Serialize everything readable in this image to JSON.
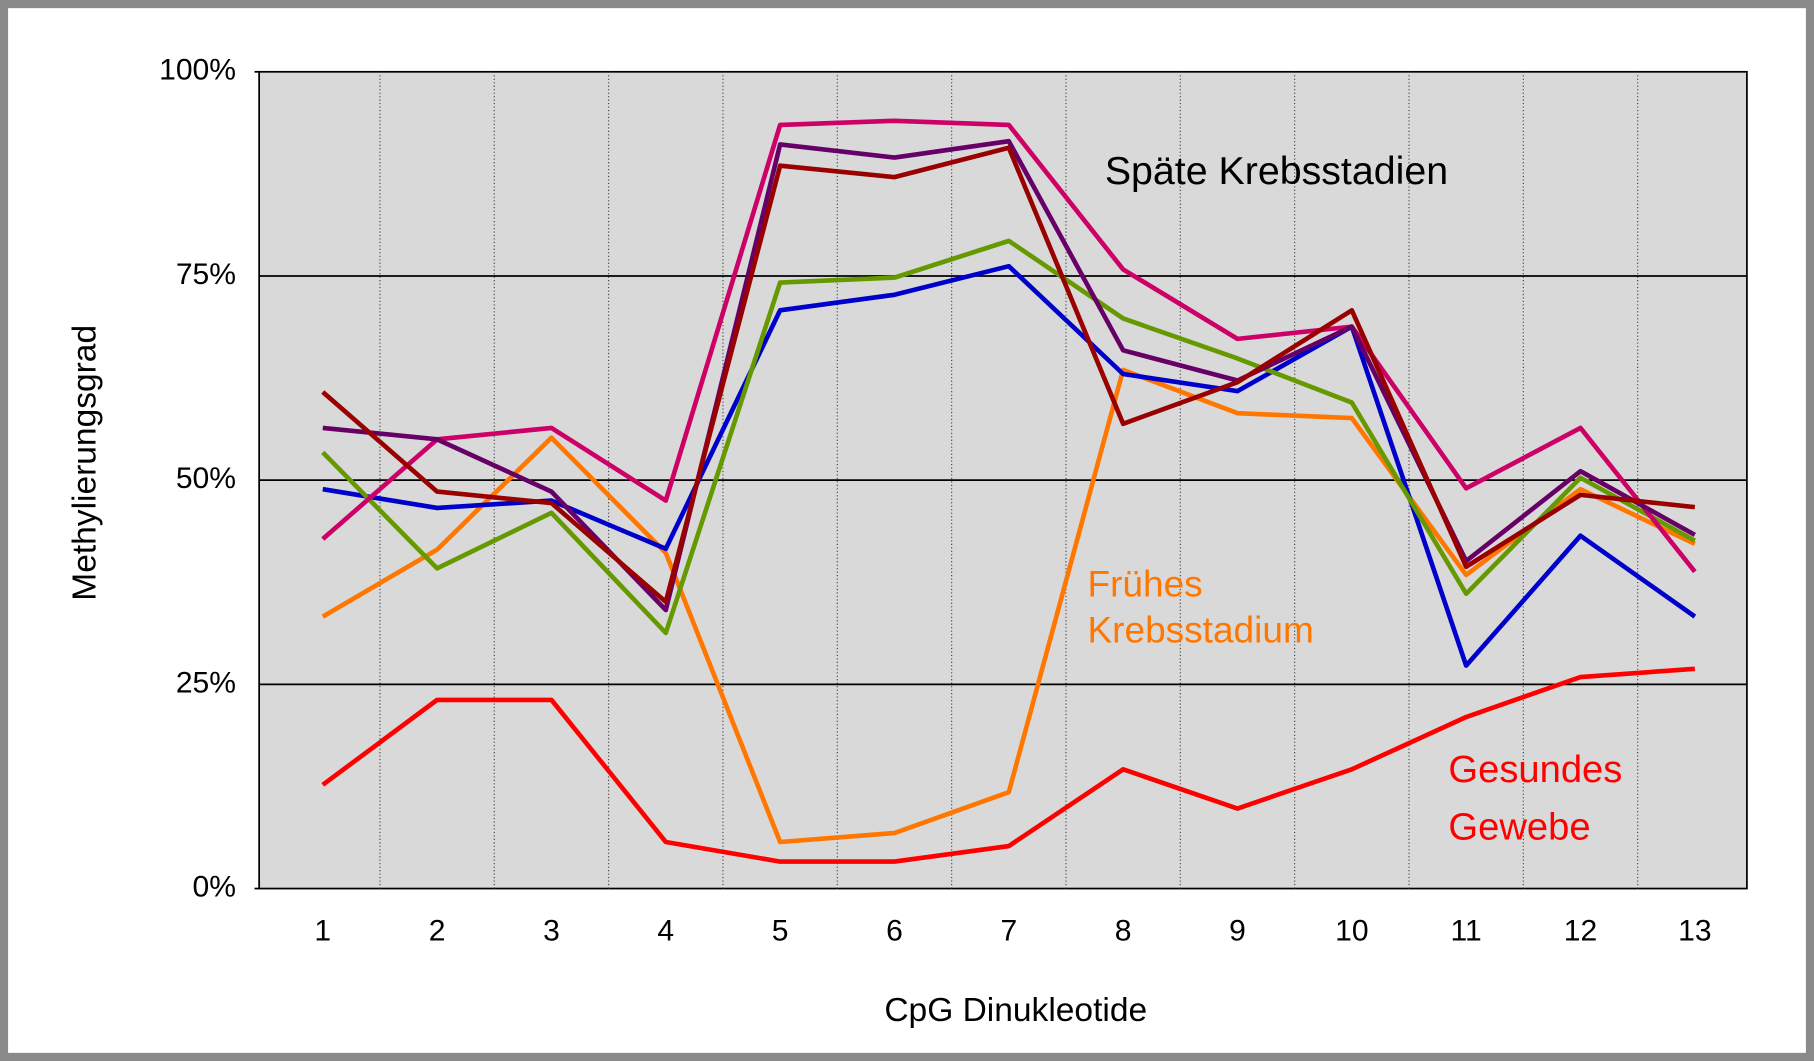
{
  "chart_data": {
    "type": "line",
    "x_label": "CpG Dinukleotide",
    "y_label": "Methylierungsgrad",
    "categories": [
      "1",
      "2",
      "3",
      "4",
      "5",
      "6",
      "7",
      "8",
      "9",
      "10",
      "11",
      "12",
      "13"
    ],
    "ylim": [
      0,
      100
    ],
    "yticks": [
      {
        "value": 0,
        "label": "0%"
      },
      {
        "value": 25,
        "label": "25%"
      },
      {
        "value": 50,
        "label": "50%"
      },
      {
        "value": 75,
        "label": "75%"
      },
      {
        "value": 100,
        "label": "100%"
      }
    ],
    "grid": true,
    "series": [
      {
        "color": "#ff0000",
        "values": [
          12.7,
          23.1,
          23.1,
          5.7,
          3.3,
          3.3,
          5.2,
          14.6,
          9.8,
          14.6,
          21,
          25.9,
          26.9
        ]
      },
      {
        "color": "#ff7700",
        "values": [
          33.3,
          41.5,
          55.2,
          41.1,
          5.7,
          6.8,
          11.8,
          63.5,
          58.2,
          57.6,
          38.4,
          48.9,
          42.2
        ]
      },
      {
        "color": "#0000cc",
        "values": [
          48.9,
          46.6,
          47.5,
          41.6,
          70.8,
          72.7,
          76.2,
          63,
          60.9,
          68.8,
          27.3,
          43.2,
          33.3
        ]
      },
      {
        "color": "#669900",
        "values": [
          53.4,
          39.2,
          46,
          31.3,
          74.2,
          74.8,
          79.3,
          69.8,
          64.9,
          59.5,
          36.1,
          50.3,
          42.6
        ]
      },
      {
        "color": "#cc0066",
        "values": [
          42.8,
          55,
          56.4,
          47.5,
          93.5,
          94,
          93.5,
          75.8,
          67.3,
          68.8,
          49,
          56.4,
          38.8
        ]
      },
      {
        "color": "#660066",
        "values": [
          56.4,
          55,
          48.6,
          34.1,
          91.1,
          89.5,
          91.5,
          65.9,
          62.2,
          68.8,
          40.1,
          51.1,
          43.3
        ]
      },
      {
        "color": "#990000",
        "values": [
          60.8,
          48.6,
          47.2,
          35.1,
          88.5,
          87.1,
          90.7,
          56.9,
          62,
          70.8,
          39.4,
          48.2,
          46.7
        ]
      }
    ],
    "annotations": [
      {
        "lines": [
          "Späte Krebsstadien"
        ],
        "color": "#000000"
      },
      {
        "lines": [
          "Frühes",
          "Krebsstadium"
        ],
        "color": "#ff7700"
      },
      {
        "lines": [
          "Gesundes",
          "Gewebe"
        ],
        "color": "#ff0000"
      }
    ]
  }
}
